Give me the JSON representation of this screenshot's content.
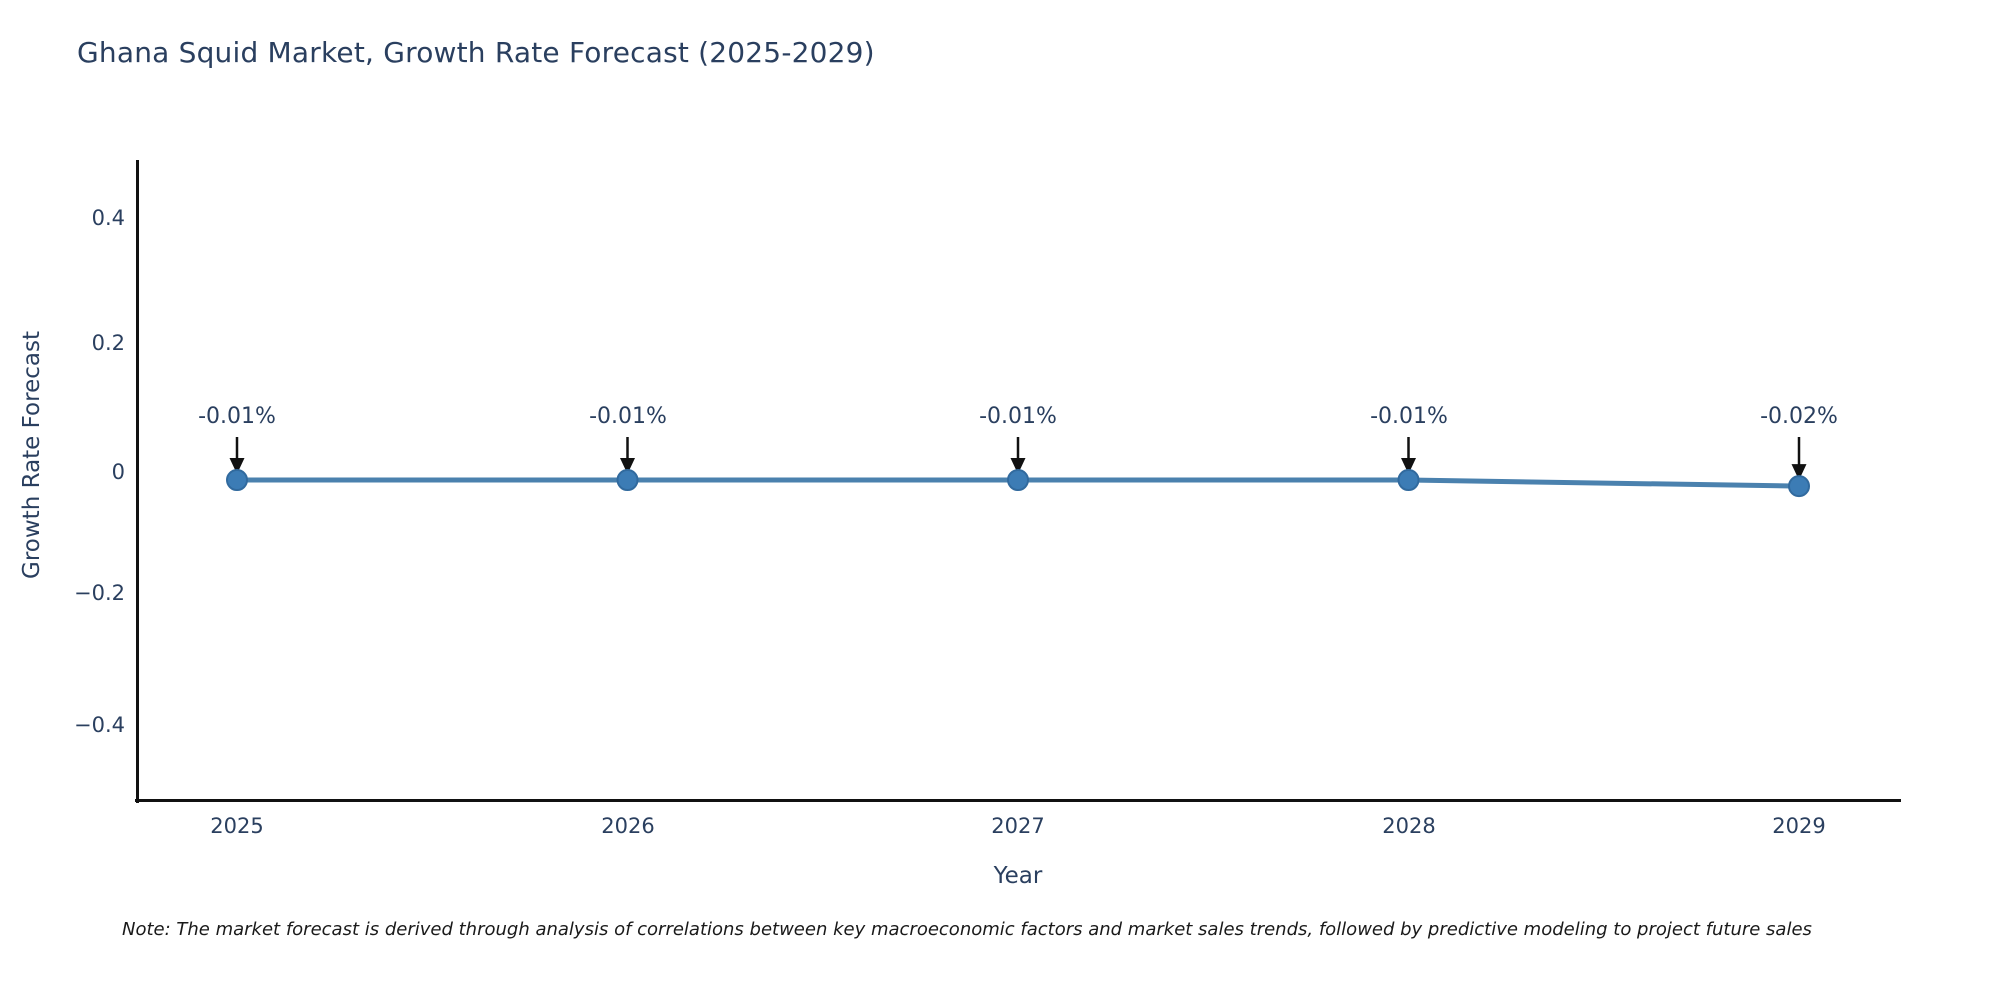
{
  "title": "Ghana Squid Market, Growth Rate Forecast (2025-2029)",
  "x_axis": {
    "title": "Year",
    "ticks": [
      "2025",
      "2026",
      "2027",
      "2028",
      "2029"
    ]
  },
  "y_axis": {
    "title": "Growth Rate Forecast",
    "ticks": [
      "0.4",
      "0.2",
      "0",
      "−0.2",
      "−0.4"
    ]
  },
  "annotations": [
    "-0.01%",
    "-0.01%",
    "-0.01%",
    "-0.01%",
    "-0.02%"
  ],
  "note": "Note: The market forecast is derived through analysis of correlations between key macroeconomic factors and market sales trends, followed by predictive modeling to project future sales",
  "colors": {
    "line": "#4a81ae",
    "marker": "#3c7cb5",
    "marker_edge": "#316a9e",
    "arrow": "#111111",
    "text": "#2a3f5f",
    "axis_line": "#111111",
    "note_text": "#1a1a1a"
  },
  "chart_data": {
    "type": "line",
    "title": "Ghana Squid Market, Growth Rate Forecast (2025-2029)",
    "x": [
      2025,
      2026,
      2027,
      2028,
      2029
    ],
    "series": [
      {
        "name": "Growth Rate Forecast",
        "values": [
          -0.01,
          -0.01,
          -0.01,
          -0.01,
          -0.02
        ]
      }
    ],
    "value_labels": [
      "-0.01%",
      "-0.01%",
      "-0.01%",
      "-0.01%",
      "-0.02%"
    ],
    "xlabel": "Year",
    "ylabel": "Growth Rate Forecast",
    "ylim": [
      -0.55,
      0.48
    ],
    "yticks": [
      0.4,
      0.2,
      0,
      -0.2,
      -0.4
    ],
    "grid": false,
    "legend_position": "none",
    "marker": "circle",
    "annotation_arrows": true
  }
}
